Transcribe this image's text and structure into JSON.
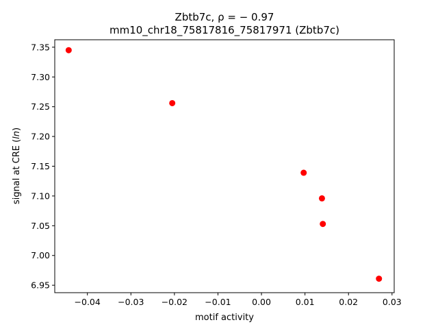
{
  "chart_data": {
    "type": "scatter",
    "title_line1": "Zbtb7c, ρ = − 0.97",
    "title_line2": "mm10_chr18_75817816_75817971 (Zbtb7c)",
    "xlabel": "motif activity",
    "ylabel_main": "signal at CRE (",
    "ylabel_italic": "ln",
    "ylabel_end": ")",
    "xlim": [
      -0.0475,
      0.0305
    ],
    "ylim": [
      6.9375,
      7.3625
    ],
    "xticks": [
      -0.04,
      -0.03,
      -0.02,
      -0.01,
      0.0,
      0.01,
      0.02,
      0.03
    ],
    "xtick_labels": [
      "−0.04",
      "−0.03",
      "−0.02",
      "−0.01",
      "0.00",
      "0.01",
      "0.02",
      "0.03"
    ],
    "yticks": [
      6.95,
      7.0,
      7.05,
      7.1,
      7.15,
      7.2,
      7.25,
      7.3,
      7.35
    ],
    "ytick_labels": [
      "6.95",
      "7.00",
      "7.05",
      "7.10",
      "7.15",
      "7.20",
      "7.25",
      "7.30",
      "7.35"
    ],
    "point_color": "#ff0000",
    "grid": false,
    "points": [
      {
        "x": -0.0443,
        "y": 7.345
      },
      {
        "x": -0.0205,
        "y": 7.256
      },
      {
        "x": 0.0097,
        "y": 7.139
      },
      {
        "x": 0.0139,
        "y": 7.096
      },
      {
        "x": 0.0141,
        "y": 7.053
      },
      {
        "x": 0.027,
        "y": 6.961
      }
    ]
  }
}
